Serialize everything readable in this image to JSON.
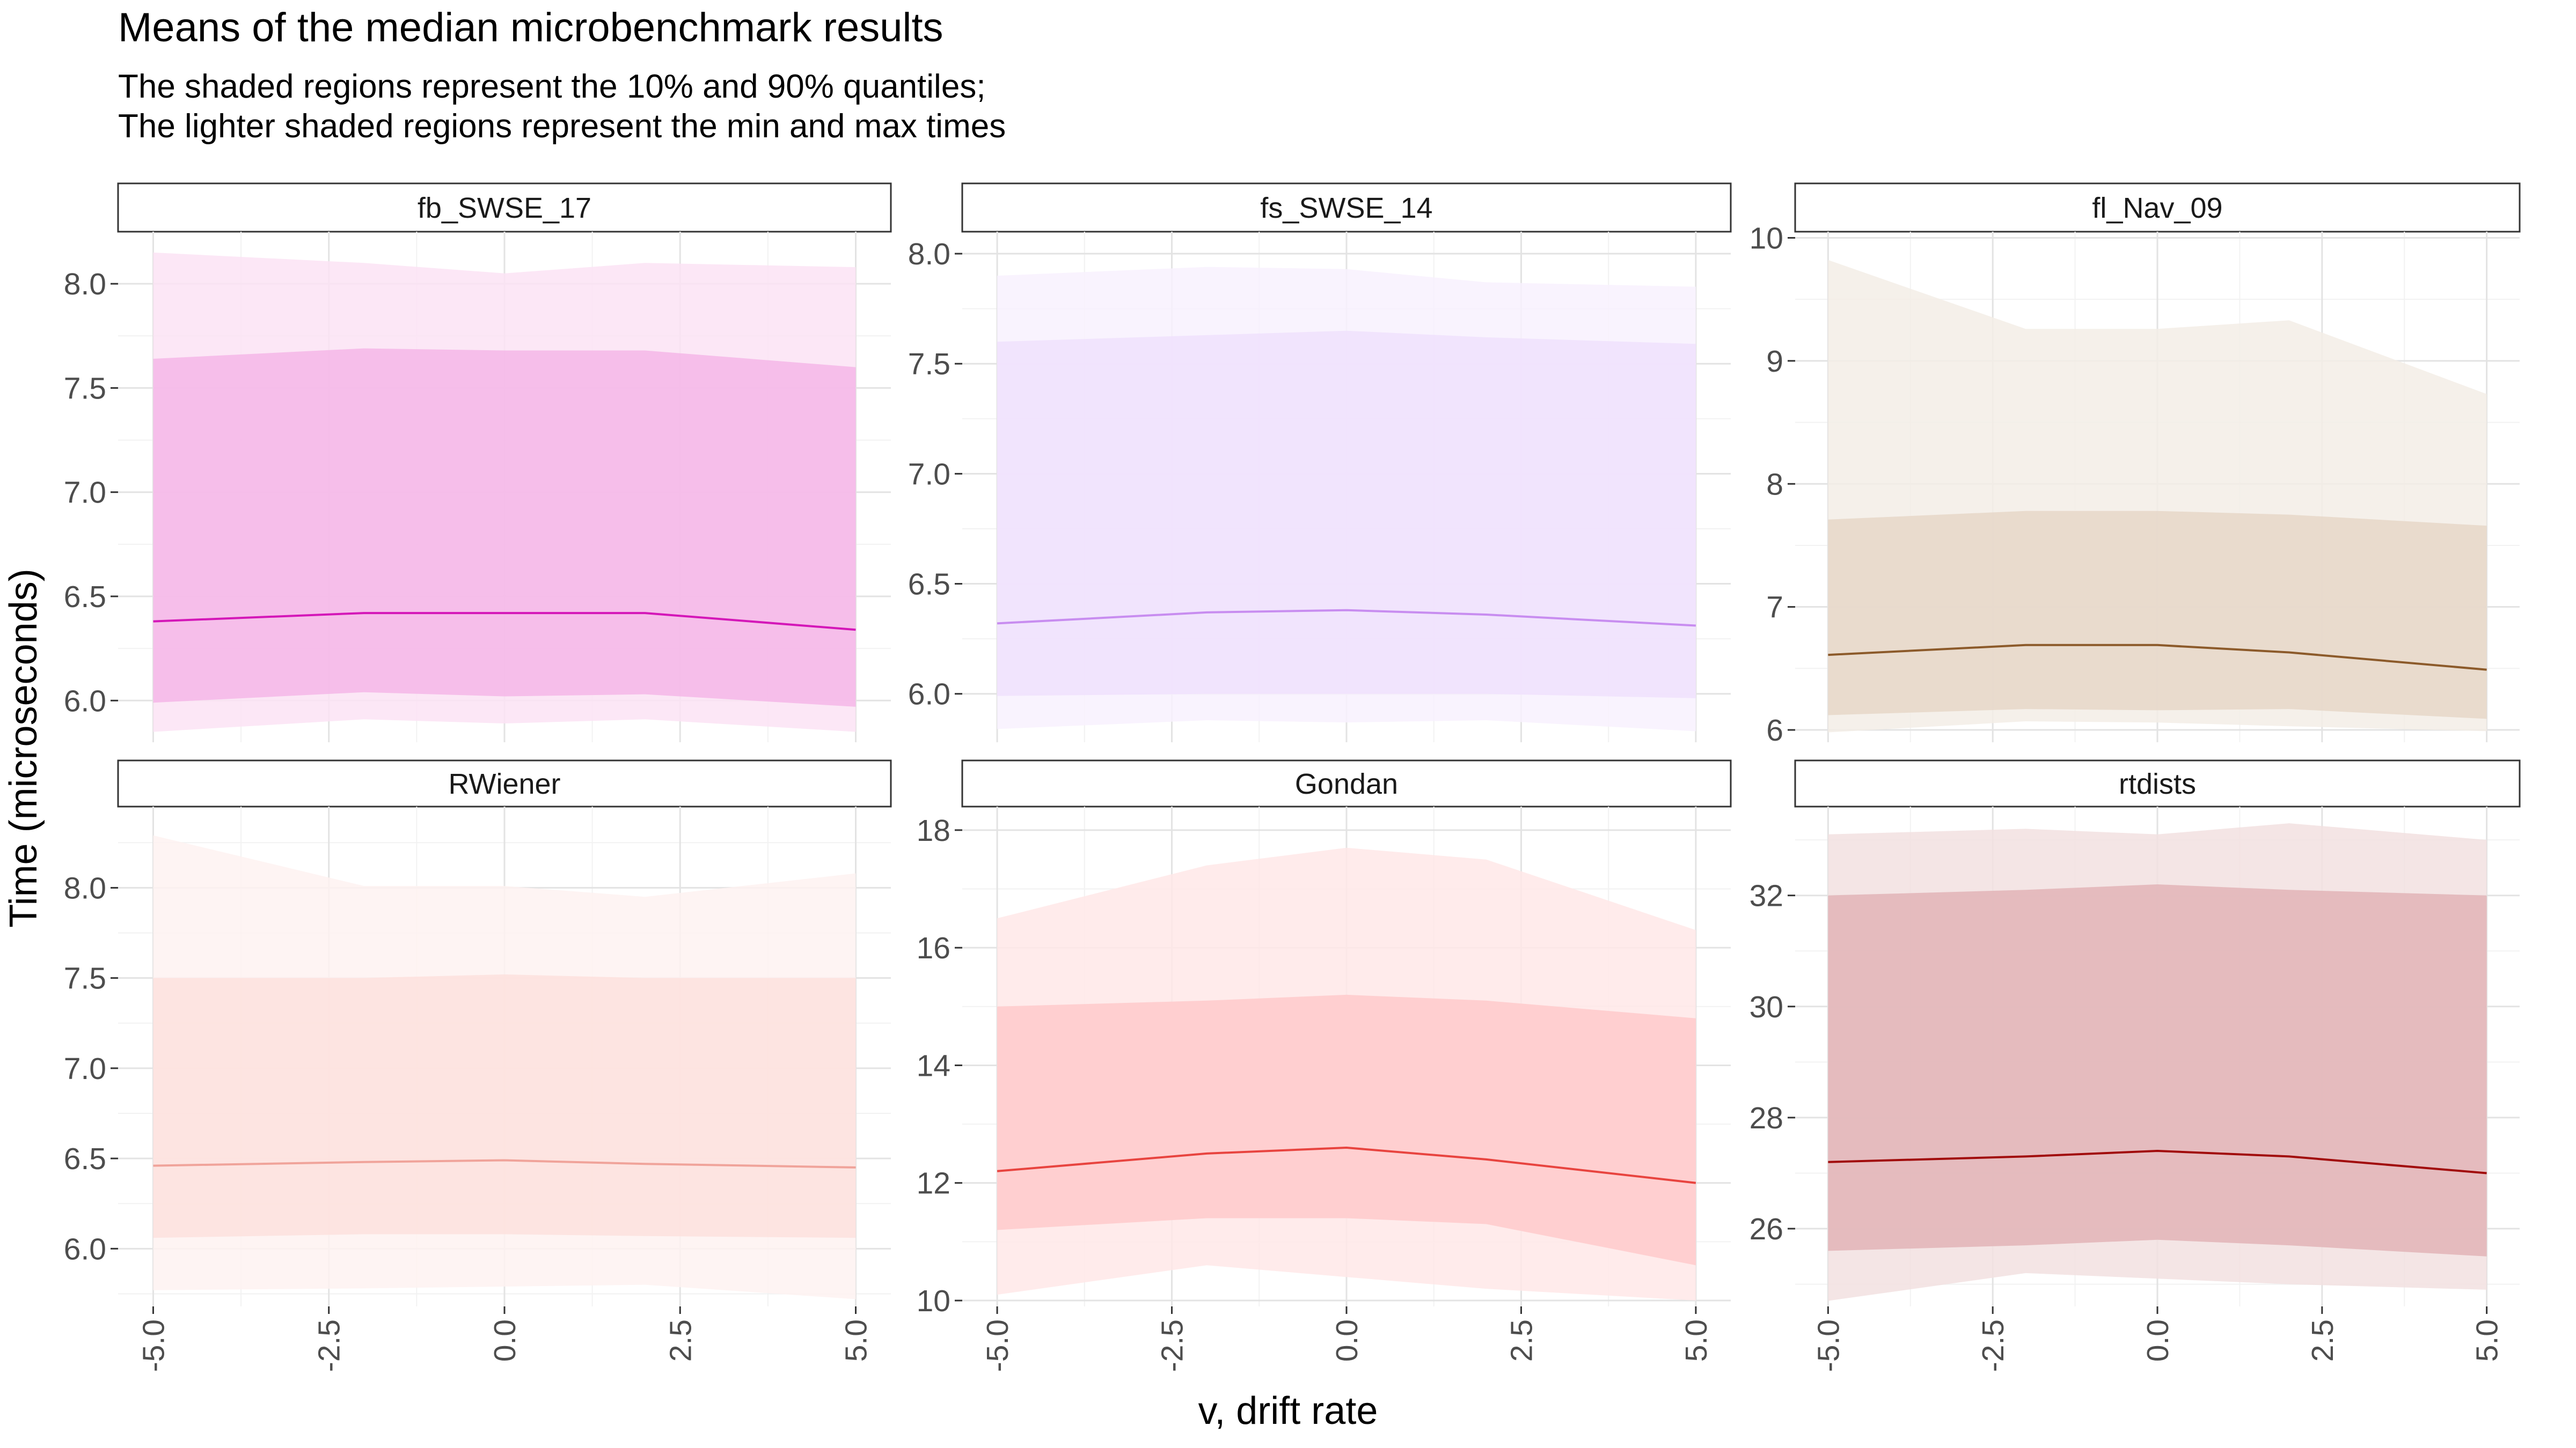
{
  "title": "Means of the median microbenchmark results",
  "subtitle_line1": "The shaded regions represent the 10% and 90% quantiles;",
  "subtitle_line2": "The lighter shaded regions represent the min and max times",
  "chart_data": {
    "type": "area",
    "xlabel": "v, drift rate",
    "ylabel": "Time (microseconds)",
    "x": [
      -5,
      -2,
      0,
      2,
      5
    ],
    "xticks": [
      -5,
      -2.5,
      0,
      2.5,
      5
    ],
    "xtick_labels": [
      "-5.0",
      "-2.5",
      "0.0",
      "2.5",
      "5.0"
    ],
    "xlim": [
      -5.5,
      5.5
    ],
    "grid": true,
    "legend": "none",
    "panels": [
      {
        "name": "fb_SWSE_17",
        "color": "#d417b8",
        "inner_fill": "#f4b6e8",
        "outer_fill": "#fbe3f5",
        "ylim": [
          5.8,
          8.25
        ],
        "yticks": [
          6.0,
          6.5,
          7.0,
          7.5,
          8.0
        ],
        "ytick_labels": [
          "6.0",
          "6.5",
          "7.0",
          "7.5",
          "8.0"
        ],
        "mean": [
          6.38,
          6.42,
          6.42,
          6.42,
          6.34
        ],
        "q10": [
          5.99,
          6.04,
          6.02,
          6.03,
          5.97
        ],
        "q90": [
          7.64,
          7.69,
          7.68,
          7.68,
          7.6
        ],
        "min": [
          5.85,
          5.91,
          5.89,
          5.91,
          5.85
        ],
        "max": [
          8.15,
          8.1,
          8.05,
          8.1,
          8.08
        ]
      },
      {
        "name": "fs_SWSE_14",
        "color": "#c88df0",
        "inner_fill": "#f0e1fd",
        "outer_fill": "#f8f1fe",
        "ylim": [
          5.78,
          8.1
        ],
        "yticks": [
          6.0,
          6.5,
          7.0,
          7.5,
          8.0
        ],
        "ytick_labels": [
          "6.0",
          "6.5",
          "7.0",
          "7.5",
          "8.0"
        ],
        "mean": [
          6.32,
          6.37,
          6.38,
          6.36,
          6.31
        ],
        "q10": [
          5.99,
          6.0,
          6.0,
          6.0,
          5.98
        ],
        "q90": [
          7.6,
          7.63,
          7.65,
          7.62,
          7.59
        ],
        "min": [
          5.84,
          5.88,
          5.87,
          5.88,
          5.83
        ],
        "max": [
          7.9,
          7.94,
          7.93,
          7.87,
          7.85
        ]
      },
      {
        "name": "fl_Nav_09",
        "color": "#8c5a2a",
        "inner_fill": "#e6d7c8",
        "outer_fill": "#f3ede6",
        "ylim": [
          5.9,
          10.05
        ],
        "yticks": [
          6,
          7,
          8,
          9,
          10
        ],
        "ytick_labels": [
          "6",
          "7",
          "8",
          "9",
          "10"
        ],
        "mean": [
          6.61,
          6.69,
          6.69,
          6.63,
          6.49
        ],
        "q10": [
          6.12,
          6.17,
          6.16,
          6.17,
          6.09
        ],
        "q90": [
          7.71,
          7.78,
          7.78,
          7.75,
          7.66
        ],
        "min": [
          5.98,
          6.07,
          6.06,
          6.03,
          5.99
        ],
        "max": [
          9.82,
          9.26,
          9.26,
          9.33,
          8.73
        ]
      },
      {
        "name": "RWiener",
        "color": "#f0a39a",
        "inner_fill": "#fde0dd",
        "outer_fill": "#fef2f1",
        "ylim": [
          5.68,
          8.45
        ],
        "yticks": [
          6.0,
          6.5,
          7.0,
          7.5,
          8.0
        ],
        "ytick_labels": [
          "6.0",
          "6.5",
          "7.0",
          "7.5",
          "8.0"
        ],
        "mean": [
          6.46,
          6.48,
          6.49,
          6.47,
          6.45
        ],
        "q10": [
          6.06,
          6.08,
          6.08,
          6.07,
          6.06
        ],
        "q90": [
          7.5,
          7.5,
          7.52,
          7.5,
          7.5
        ],
        "min": [
          5.77,
          5.78,
          5.79,
          5.8,
          5.72
        ],
        "max": [
          8.29,
          8.01,
          8.01,
          7.95,
          8.08
        ]
      },
      {
        "name": "Gondan",
        "color": "#e8443f",
        "inner_fill": "#ffcacb",
        "outer_fill": "#ffe8e8",
        "ylim": [
          9.9,
          18.4
        ],
        "yticks": [
          10,
          12,
          14,
          16,
          18
        ],
        "ytick_labels": [
          "10",
          "12",
          "14",
          "16",
          "18"
        ],
        "mean": [
          12.2,
          12.5,
          12.6,
          12.4,
          12.0
        ],
        "q10": [
          11.2,
          11.4,
          11.4,
          11.3,
          10.6
        ],
        "q90": [
          15.0,
          15.1,
          15.2,
          15.1,
          14.8
        ],
        "min": [
          10.1,
          10.6,
          10.4,
          10.2,
          10.0
        ],
        "max": [
          16.5,
          17.4,
          17.7,
          17.5,
          16.3
        ]
      },
      {
        "name": "rtdists",
        "color": "#a10b0b",
        "inner_fill": "#e2b4b7",
        "outer_fill": "#f2e1e1",
        "ylim": [
          24.6,
          33.6
        ],
        "yticks": [
          26,
          28,
          30,
          32
        ],
        "ytick_labels": [
          "26",
          "28",
          "30",
          "32"
        ],
        "mean": [
          27.2,
          27.3,
          27.4,
          27.3,
          27.0
        ],
        "q10": [
          25.6,
          25.7,
          25.8,
          25.7,
          25.5
        ],
        "q90": [
          32.0,
          32.1,
          32.2,
          32.1,
          32.0
        ],
        "min": [
          24.7,
          25.2,
          25.1,
          25.0,
          24.9
        ],
        "max": [
          33.1,
          33.2,
          33.1,
          33.3,
          33.0
        ]
      }
    ]
  }
}
